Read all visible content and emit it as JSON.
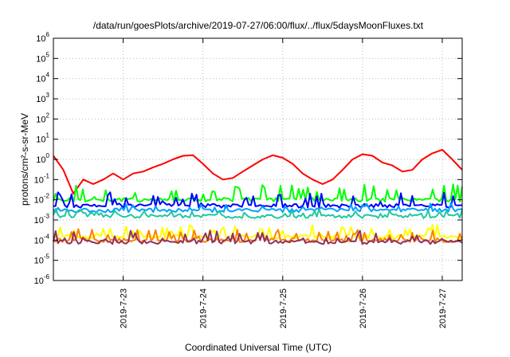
{
  "chart_data": {
    "type": "line",
    "title": "/data/run/goesPlots/archive/2019-07-27/06:00/flux/../flux/5daysMoonFluxes.txt",
    "xlabel": "Coordinated Universal Time (UTC)",
    "ylabel": "protons/cm²-s-sr-MeV",
    "y_scale": "log",
    "ylim": [
      1e-06,
      1000000.0
    ],
    "y_ticks": [
      {
        "exp": "-6",
        "value": 1e-06
      },
      {
        "exp": "-5",
        "value": 1e-05
      },
      {
        "exp": "-4",
        "value": 0.0001
      },
      {
        "exp": "-3",
        "value": 0.001
      },
      {
        "exp": "-2",
        "value": 0.01
      },
      {
        "exp": "-1",
        "value": 0.1
      },
      {
        "exp": "0",
        "value": 1
      },
      {
        "exp": "1",
        "value": 10.0
      },
      {
        "exp": "2",
        "value": 100.0
      },
      {
        "exp": "3",
        "value": 1000.0
      },
      {
        "exp": "4",
        "value": 10000.0
      },
      {
        "exp": "5",
        "value": 100000.0
      },
      {
        "exp": "6",
        "value": 1000000.0
      }
    ],
    "xlim": [
      "2019-07-22T03:00",
      "2019-07-27T06:00"
    ],
    "x_ticks": [
      "2019-7-23",
      "2019-7-24",
      "2019-7-25",
      "2019-7-26",
      "2019-7-27"
    ],
    "grid": true,
    "series": [
      {
        "color": "#ff0000",
        "x": [
          "2019-07-22T03:00",
          "2019-07-22T06:00",
          "2019-07-22T09:00",
          "2019-07-22T12:00",
          "2019-07-22T15:00",
          "2019-07-22T18:00",
          "2019-07-22T21:00",
          "2019-07-23T00:00",
          "2019-07-23T03:00",
          "2019-07-23T06:00",
          "2019-07-23T09:00",
          "2019-07-23T12:00",
          "2019-07-23T15:00",
          "2019-07-23T18:00",
          "2019-07-23T21:00",
          "2019-07-24T00:00",
          "2019-07-24T03:00",
          "2019-07-24T06:00",
          "2019-07-24T09:00",
          "2019-07-24T12:00",
          "2019-07-24T15:00",
          "2019-07-24T18:00",
          "2019-07-24T21:00",
          "2019-07-25T00:00",
          "2019-07-25T03:00",
          "2019-07-25T06:00",
          "2019-07-25T09:00",
          "2019-07-25T12:00",
          "2019-07-25T15:00",
          "2019-07-25T18:00",
          "2019-07-25T21:00",
          "2019-07-26T00:00",
          "2019-07-26T03:00",
          "2019-07-26T06:00",
          "2019-07-26T09:00",
          "2019-07-26T12:00",
          "2019-07-26T15:00",
          "2019-07-26T18:00",
          "2019-07-26T21:00",
          "2019-07-27T00:00",
          "2019-07-27T03:00",
          "2019-07-27T06:00"
        ],
        "values": [
          1.5,
          0.3,
          0.02,
          0.1,
          0.06,
          0.1,
          0.2,
          0.1,
          0.2,
          0.25,
          0.4,
          0.6,
          1.0,
          1.5,
          1.6,
          0.6,
          0.2,
          0.1,
          0.12,
          0.25,
          0.5,
          1.0,
          1.6,
          1.2,
          0.6,
          0.2,
          0.1,
          0.06,
          0.1,
          0.3,
          1.0,
          1.8,
          1.5,
          0.7,
          0.5,
          0.25,
          0.3,
          1.0,
          2.0,
          3.0,
          1.0,
          0.3
        ]
      },
      {
        "color": "#00ff00",
        "x": [
          "2019-07-22T03:00",
          "2019-07-27T06:00"
        ],
        "base": 0.01,
        "spikes": [
          0.05,
          0.03,
          0.05,
          0.02,
          0.04,
          0.05,
          0.03,
          0.05
        ]
      },
      {
        "color": "#0000ff",
        "x": [
          "2019-07-22T03:00",
          "2019-07-27T06:00"
        ],
        "base": 0.005,
        "spikes": [
          0.02,
          0.015,
          0.02,
          0.01,
          0.015
        ]
      },
      {
        "color": "#00a0ff",
        "x": [
          "2019-07-22T03:00",
          "2019-07-27T06:00"
        ],
        "base": 0.003,
        "spikes": [
          0.006,
          0.004,
          0.005
        ]
      },
      {
        "color": "#20c8a0",
        "x": [
          "2019-07-22T03:00",
          "2019-07-27T06:00"
        ],
        "base": 0.0015,
        "spikes": [
          0.003,
          0.002,
          0.0025
        ]
      },
      {
        "color": "#ffff00",
        "x": [
          "2019-07-22T03:00",
          "2019-07-27T06:00"
        ],
        "base": 0.00015,
        "spikes": [
          0.0005,
          0.0003,
          0.0004
        ]
      },
      {
        "color": "#ff8000",
        "x": [
          "2019-07-22T03:00",
          "2019-07-27T06:00"
        ],
        "base": 0.0001,
        "spikes": [
          0.0003,
          0.0002,
          0.0003
        ]
      },
      {
        "color": "#903060",
        "x": [
          "2019-07-22T03:00",
          "2019-07-27T06:00"
        ],
        "base": 8e-05,
        "spikes": [
          0.00025,
          0.00015,
          0.0002
        ]
      }
    ]
  }
}
